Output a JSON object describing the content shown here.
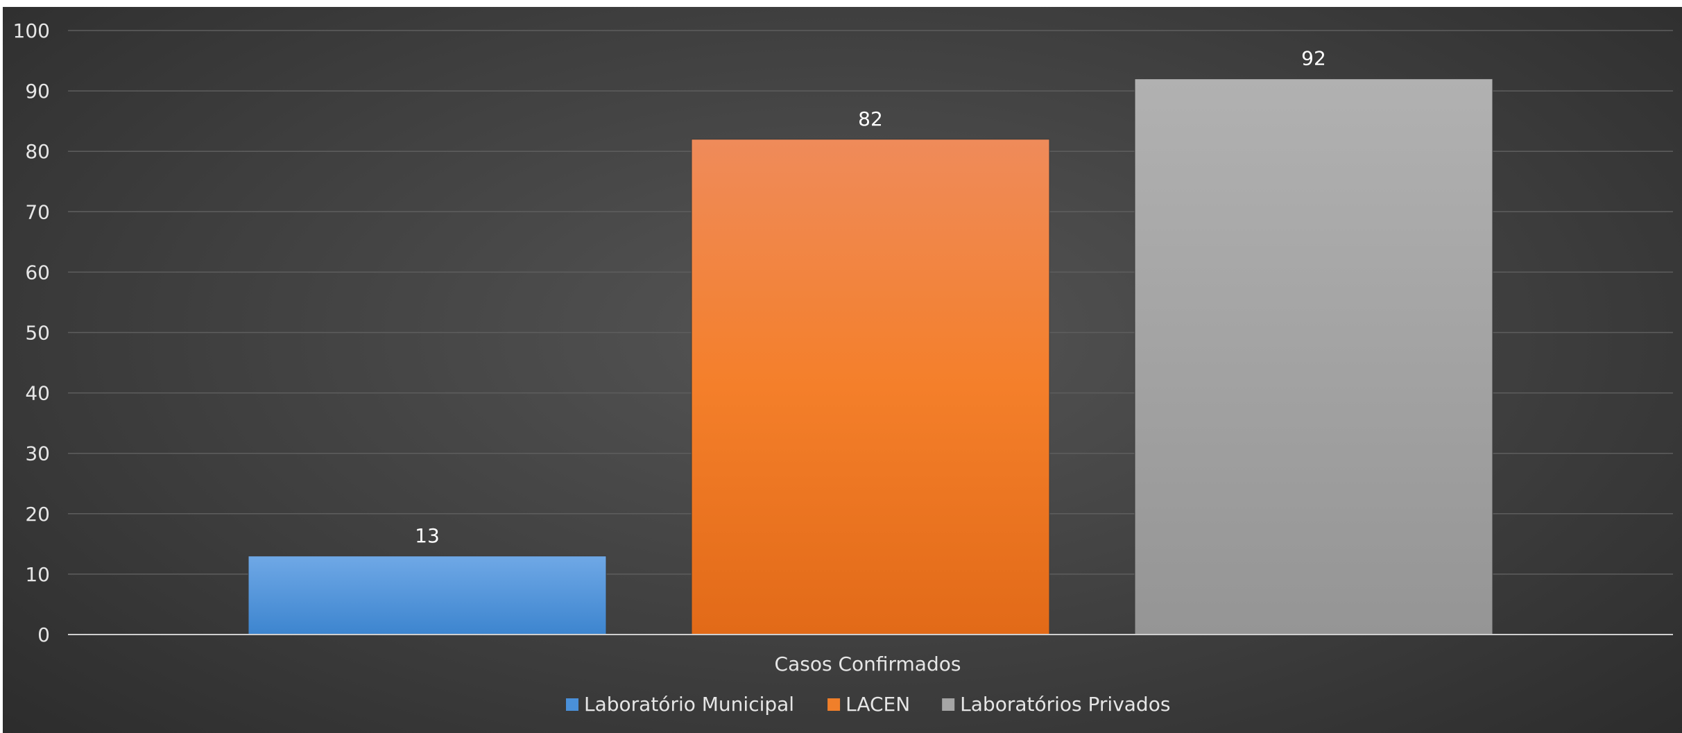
{
  "chart_data": {
    "type": "bar",
    "categories": [
      "Casos Confirmados"
    ],
    "series": [
      {
        "name": "Laboratório Municipal",
        "values": [
          13
        ],
        "color": "#4a90d9"
      },
      {
        "name": "LACEN",
        "values": [
          82
        ],
        "color": "#f07f2a"
      },
      {
        "name": "Laboratórios Privados",
        "values": [
          92
        ],
        "color": "#a5a5a5"
      }
    ],
    "title": "",
    "xlabel": "Casos Confirmados",
    "ylabel": "",
    "ylim": [
      0,
      100
    ],
    "yticks": [
      0,
      10,
      20,
      30,
      40,
      50,
      60,
      70,
      80,
      90,
      100
    ],
    "grid": true,
    "legend_position": "bottom",
    "data_labels": true
  }
}
